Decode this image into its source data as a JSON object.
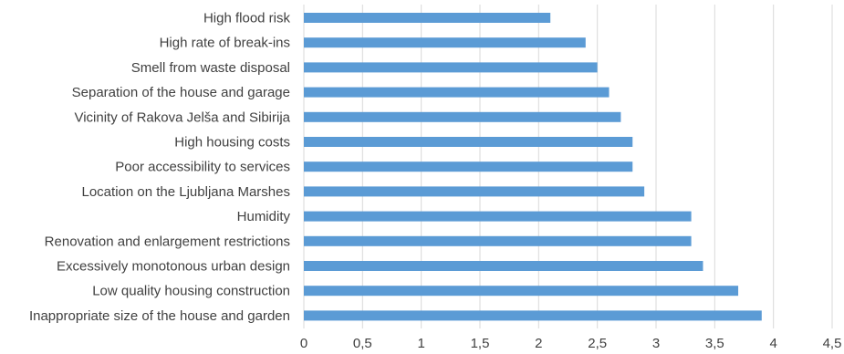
{
  "chart_data": {
    "type": "bar",
    "orientation": "horizontal",
    "title": "",
    "xlabel": "",
    "ylabel": "",
    "xlim": [
      0,
      4.5
    ],
    "x_ticks": [
      "0",
      "0,5",
      "1",
      "1,5",
      "2",
      "2,5",
      "3",
      "3,5",
      "4",
      "4,5"
    ],
    "grid": true,
    "legend": "none",
    "bar_color": "#5b9bd5",
    "categories": [
      "High flood risk",
      "High rate of break-ins",
      "Smell from waste disposal ",
      "Separation of the house and garage",
      "Vicinity of Rakova Jelša and Sibirija",
      "High housing costs",
      "Poor accessibility to services",
      "Location on the Ljubljana Marshes",
      "Humidity ",
      "Renovation and enlargement restrictions",
      "Excessively monotonous urban design",
      "Low quality housing construction",
      "Inappropriate size of the house and garden"
    ],
    "values": [
      2.1,
      2.4,
      2.5,
      2.6,
      2.7,
      2.8,
      2.8,
      2.9,
      3.3,
      3.3,
      3.4,
      3.7,
      3.9
    ]
  }
}
